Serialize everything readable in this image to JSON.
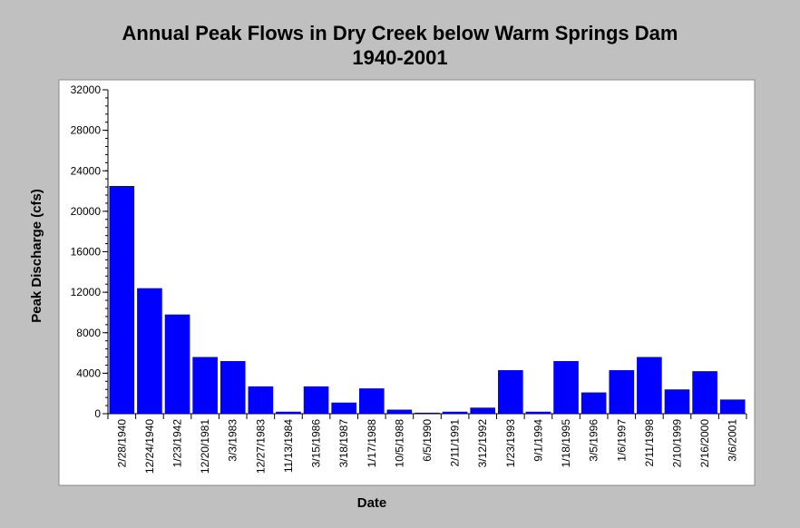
{
  "chart_data": {
    "type": "bar",
    "title": "Annual Peak Flows in Dry Creek below Warm Springs Dam",
    "subtitle": "1940-2001",
    "xlabel": "Date",
    "ylabel": "Peak Discharge (cfs)",
    "ylim": [
      0,
      32000
    ],
    "yticks": [
      "0",
      "4000",
      "8000",
      "12000",
      "16000",
      "20000",
      "24000",
      "28000",
      "32000"
    ],
    "grid": false,
    "bar_color": "#0000ff",
    "categories": [
      "2/28/1940",
      "12/24/1940",
      "1/23/1942",
      "12/20/1981",
      "3/3/1983",
      "12/27/1983",
      "11/13/1984",
      "3/15/1986",
      "3/18/1987",
      "1/17/1988",
      "10/5/1988",
      "6/5/1990",
      "2/11/1991",
      "3/12/1992",
      "1/23/1993",
      "9/1/1994",
      "1/18/1995",
      "3/5/1996",
      "1/6/1997",
      "2/11/1998",
      "2/10/1999",
      "2/16/2000",
      "3/6/2001"
    ],
    "values": [
      22500,
      12400,
      9800,
      5600,
      5200,
      2700,
      200,
      2700,
      1100,
      2500,
      400,
      100,
      200,
      600,
      4300,
      200,
      5200,
      2100,
      4300,
      5600,
      2400,
      4200,
      1400
    ]
  }
}
